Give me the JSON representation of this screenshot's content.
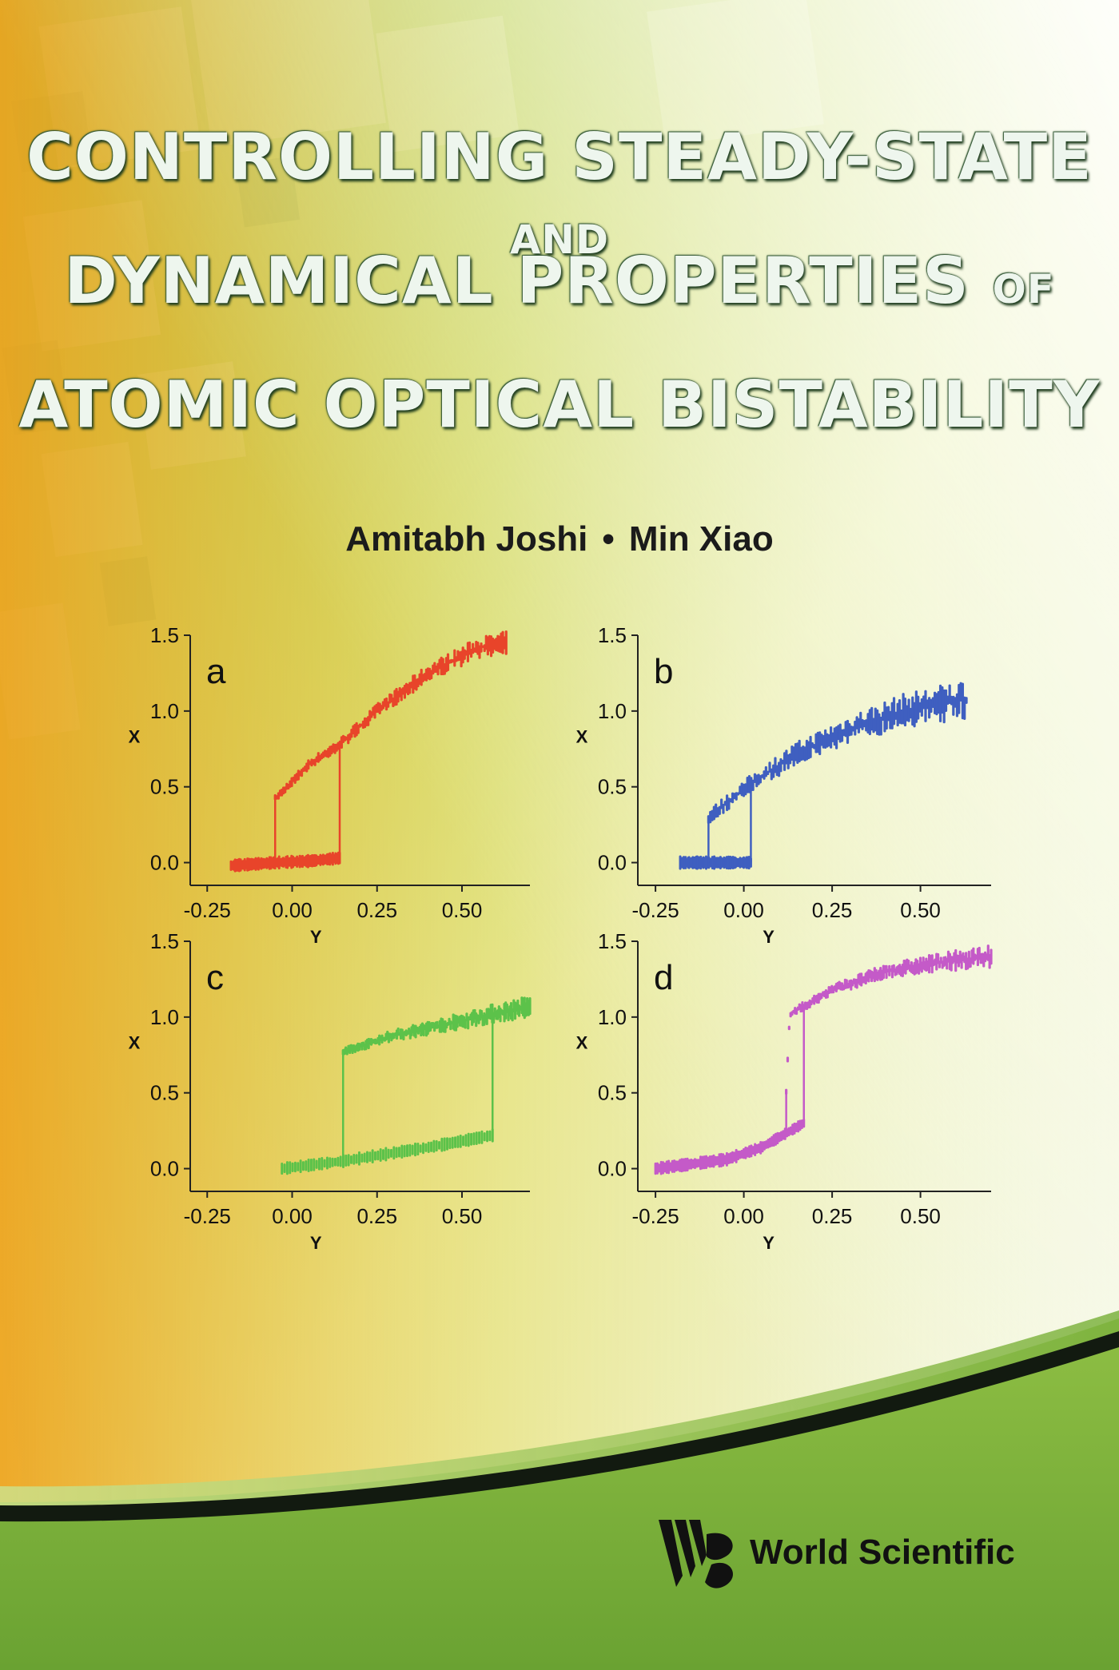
{
  "book": {
    "title_lines": [
      {
        "main": "CONTROLLING STEADY-STATE ",
        "small": "AND"
      },
      {
        "main": "DYNAMICAL PROPERTIES ",
        "small": "OF"
      },
      {
        "main": "ATOMIC OPTICAL BISTABILITY",
        "small": ""
      }
    ],
    "author_1": "Amitabh Joshi",
    "separator": "•",
    "author_2": "Min Xiao",
    "publisher": "World Scientific",
    "publisher_logo_icon": "ws-logo-icon"
  },
  "colors": {
    "panel_a": "#e8442a",
    "panel_b": "#3f5fc0",
    "panel_c": "#5cc24a",
    "panel_d": "#c45ac8"
  },
  "chart_data": [
    {
      "type": "scatter",
      "panel_label": "a",
      "xlabel": "Y",
      "ylabel": "X",
      "xlim": [
        -0.3,
        0.7
      ],
      "ylim": [
        -0.15,
        1.5
      ],
      "xticks": [
        "-0.25",
        "0.00",
        "0.25",
        "0.50"
      ],
      "yticks": [
        "0.0",
        "0.5",
        "1.0",
        "1.5"
      ],
      "lower_branch": [
        [
          -0.18,
          -0.02
        ],
        [
          -0.05,
          0.0
        ],
        [
          0.05,
          0.01
        ],
        [
          0.14,
          0.03
        ]
      ],
      "upper_branch": [
        [
          -0.05,
          0.42
        ],
        [
          0.05,
          0.65
        ],
        [
          0.14,
          0.78
        ],
        [
          0.25,
          1.0
        ],
        [
          0.4,
          1.25
        ],
        [
          0.55,
          1.42
        ],
        [
          0.63,
          1.45
        ]
      ],
      "switch_up_at": 0.14,
      "switch_down_at": -0.05
    },
    {
      "type": "scatter",
      "panel_label": "b",
      "xlabel": "Y",
      "ylabel": "X",
      "xlim": [
        -0.3,
        0.7
      ],
      "ylim": [
        -0.15,
        1.5
      ],
      "xticks": [
        "-0.25",
        "0.00",
        "0.25",
        "0.50"
      ],
      "yticks": [
        "0.0",
        "0.5",
        "1.0",
        "1.5"
      ],
      "lower_branch": [
        [
          -0.18,
          0.0
        ],
        [
          -0.1,
          0.0
        ],
        [
          0.02,
          0.0
        ]
      ],
      "upper_branch": [
        [
          -0.1,
          0.3
        ],
        [
          0.02,
          0.52
        ],
        [
          0.15,
          0.72
        ],
        [
          0.3,
          0.88
        ],
        [
          0.45,
          1.0
        ],
        [
          0.63,
          1.08
        ]
      ],
      "switch_up_at": 0.02,
      "switch_down_at": -0.1
    },
    {
      "type": "scatter",
      "panel_label": "c",
      "xlabel": "Y",
      "ylabel": "X",
      "xlim": [
        -0.3,
        0.7
      ],
      "ylim": [
        -0.15,
        1.5
      ],
      "xticks": [
        "-0.25",
        "0.00",
        "0.25",
        "0.50"
      ],
      "yticks": [
        "0.0",
        "0.5",
        "1.0",
        "1.5"
      ],
      "lower_branch": [
        [
          -0.03,
          0.0
        ],
        [
          0.15,
          0.05
        ],
        [
          0.4,
          0.14
        ],
        [
          0.59,
          0.22
        ]
      ],
      "upper_branch": [
        [
          0.15,
          0.77
        ],
        [
          0.3,
          0.88
        ],
        [
          0.45,
          0.95
        ],
        [
          0.59,
          1.02
        ],
        [
          0.7,
          1.07
        ]
      ],
      "switch_up_at": 0.59,
      "switch_down_at": 0.15
    },
    {
      "type": "scatter",
      "panel_label": "d",
      "xlabel": "Y",
      "ylabel": "X",
      "xlim": [
        -0.3,
        0.7
      ],
      "ylim": [
        -0.15,
        1.5
      ],
      "xticks": [
        "-0.25",
        "0.00",
        "0.25",
        "0.50"
      ],
      "yticks": [
        "0.0",
        "0.5",
        "1.0",
        "1.5"
      ],
      "lower_branch": [
        [
          -0.25,
          0.0
        ],
        [
          -0.05,
          0.06
        ],
        [
          0.05,
          0.14
        ],
        [
          0.17,
          0.3
        ]
      ],
      "upper_branch": [
        [
          0.12,
          0.5
        ],
        [
          0.13,
          1.02
        ],
        [
          0.25,
          1.18
        ],
        [
          0.4,
          1.3
        ],
        [
          0.55,
          1.36
        ],
        [
          0.7,
          1.4
        ]
      ],
      "switch_up_at": 0.17,
      "switch_down_at": 0.12
    }
  ]
}
